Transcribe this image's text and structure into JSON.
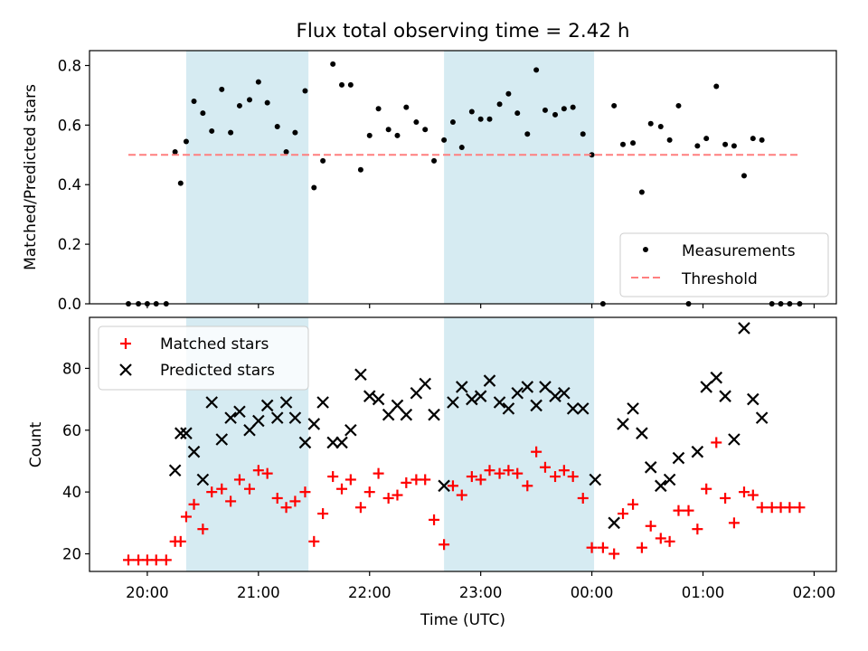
{
  "chart_data": [
    {
      "type": "scatter",
      "title": "Flux total observing time = 2.42 h",
      "xlabel": "",
      "ylabel": "Matched/Predicted stars",
      "x_units": "hours after 20:00 UTC",
      "xlim": [
        -0.52,
        6.2
      ],
      "ylim": [
        0.0,
        0.85
      ],
      "yticks": [
        "0.0",
        "0.2",
        "0.4",
        "0.6",
        "0.8"
      ],
      "shaded_intervals": [
        [
          0.35,
          1.45
        ],
        [
          2.67,
          4.02
        ]
      ],
      "legend": {
        "position": "lower-right"
      },
      "series": [
        {
          "name": "Measurements",
          "marker": "dot",
          "color": "#000000",
          "points": [
            [
              -0.17,
              0.0
            ],
            [
              -0.08,
              0.0
            ],
            [
              0.0,
              0.0
            ],
            [
              0.08,
              0.0
            ],
            [
              0.17,
              0.0
            ],
            [
              0.25,
              0.51
            ],
            [
              0.3,
              0.405
            ],
            [
              0.35,
              0.545
            ],
            [
              0.42,
              0.68
            ],
            [
              0.5,
              0.64
            ],
            [
              0.58,
              0.58
            ],
            [
              0.67,
              0.72
            ],
            [
              0.75,
              0.575
            ],
            [
              0.83,
              0.665
            ],
            [
              0.92,
              0.685
            ],
            [
              1.0,
              0.745
            ],
            [
              1.08,
              0.675
            ],
            [
              1.17,
              0.595
            ],
            [
              1.25,
              0.51
            ],
            [
              1.33,
              0.575
            ],
            [
              1.42,
              0.715
            ],
            [
              1.5,
              0.39
            ],
            [
              1.58,
              0.48
            ],
            [
              1.67,
              0.805
            ],
            [
              1.75,
              0.735
            ],
            [
              1.83,
              0.735
            ],
            [
              1.92,
              0.45
            ],
            [
              2.0,
              0.565
            ],
            [
              2.08,
              0.655
            ],
            [
              2.17,
              0.585
            ],
            [
              2.25,
              0.565
            ],
            [
              2.33,
              0.66
            ],
            [
              2.42,
              0.61
            ],
            [
              2.5,
              0.585
            ],
            [
              2.58,
              0.48
            ],
            [
              2.67,
              0.55
            ],
            [
              2.75,
              0.61
            ],
            [
              2.83,
              0.525
            ],
            [
              2.92,
              0.645
            ],
            [
              3.0,
              0.62
            ],
            [
              3.08,
              0.62
            ],
            [
              3.17,
              0.67
            ],
            [
              3.25,
              0.705
            ],
            [
              3.33,
              0.64
            ],
            [
              3.42,
              0.57
            ],
            [
              3.5,
              0.785
            ],
            [
              3.58,
              0.65
            ],
            [
              3.67,
              0.635
            ],
            [
              3.75,
              0.655
            ],
            [
              3.83,
              0.66
            ],
            [
              3.92,
              0.57
            ],
            [
              4.0,
              0.5
            ],
            [
              4.1,
              0.0
            ],
            [
              4.2,
              0.665
            ],
            [
              4.28,
              0.535
            ],
            [
              4.37,
              0.54
            ],
            [
              4.45,
              0.375
            ],
            [
              4.53,
              0.605
            ],
            [
              4.62,
              0.595
            ],
            [
              4.7,
              0.55
            ],
            [
              4.78,
              0.665
            ],
            [
              4.87,
              0.0
            ],
            [
              4.95,
              0.53
            ],
            [
              5.03,
              0.555
            ],
            [
              5.12,
              0.73
            ],
            [
              5.2,
              0.535
            ],
            [
              5.28,
              0.53
            ],
            [
              5.37,
              0.43
            ],
            [
              5.45,
              0.555
            ],
            [
              5.53,
              0.55
            ],
            [
              5.62,
              0.0
            ],
            [
              5.7,
              0.0
            ],
            [
              5.78,
              0.0
            ],
            [
              5.87,
              0.0
            ]
          ]
        },
        {
          "name": "Threshold",
          "line": "dashed",
          "color": "#ff7f7f",
          "points": [
            [
              -0.17,
              0.5
            ],
            [
              5.87,
              0.5
            ]
          ]
        }
      ]
    },
    {
      "type": "scatter",
      "title": "",
      "xlabel": "Time (UTC)",
      "ylabel": "Count",
      "x_units": "hours after 20:00 UTC",
      "xlim": [
        -0.52,
        6.2
      ],
      "ylim": [
        14.3,
        96.5
      ],
      "yticks": [
        "20",
        "40",
        "60",
        "80"
      ],
      "xticks": [
        "20:00",
        "21:00",
        "22:00",
        "23:00",
        "00:00",
        "01:00",
        "02:00"
      ],
      "shaded_intervals": [
        [
          0.35,
          1.45
        ],
        [
          2.67,
          4.02
        ]
      ],
      "legend": {
        "position": "upper-left"
      },
      "series": [
        {
          "name": "Matched stars",
          "marker": "plus",
          "color": "#ff0000",
          "points": [
            [
              -0.17,
              18
            ],
            [
              -0.08,
              18
            ],
            [
              0.0,
              18
            ],
            [
              0.08,
              18
            ],
            [
              0.17,
              18
            ],
            [
              0.25,
              24
            ],
            [
              0.3,
              24
            ],
            [
              0.35,
              32
            ],
            [
              0.42,
              36
            ],
            [
              0.5,
              28
            ],
            [
              0.58,
              40
            ],
            [
              0.67,
              41
            ],
            [
              0.75,
              37
            ],
            [
              0.83,
              44
            ],
            [
              0.92,
              41
            ],
            [
              1.0,
              47
            ],
            [
              1.08,
              46
            ],
            [
              1.17,
              38
            ],
            [
              1.25,
              35
            ],
            [
              1.33,
              37
            ],
            [
              1.42,
              40
            ],
            [
              1.5,
              24
            ],
            [
              1.58,
              33
            ],
            [
              1.67,
              45
            ],
            [
              1.75,
              41
            ],
            [
              1.83,
              44
            ],
            [
              1.92,
              35
            ],
            [
              2.0,
              40
            ],
            [
              2.08,
              46
            ],
            [
              2.17,
              38
            ],
            [
              2.25,
              39
            ],
            [
              2.33,
              43
            ],
            [
              2.42,
              44
            ],
            [
              2.5,
              44
            ],
            [
              2.58,
              31
            ],
            [
              2.67,
              23
            ],
            [
              2.75,
              42
            ],
            [
              2.83,
              39
            ],
            [
              2.92,
              45
            ],
            [
              3.0,
              44
            ],
            [
              3.08,
              47
            ],
            [
              3.17,
              46
            ],
            [
              3.25,
              47
            ],
            [
              3.33,
              46
            ],
            [
              3.42,
              42
            ],
            [
              3.5,
              53
            ],
            [
              3.58,
              48
            ],
            [
              3.67,
              45
            ],
            [
              3.75,
              47
            ],
            [
              3.83,
              45
            ],
            [
              3.92,
              38
            ],
            [
              4.0,
              22
            ],
            [
              4.1,
              22
            ],
            [
              4.2,
              20
            ],
            [
              4.28,
              33
            ],
            [
              4.37,
              36
            ],
            [
              4.45,
              22
            ],
            [
              4.53,
              29
            ],
            [
              4.62,
              25
            ],
            [
              4.7,
              24
            ],
            [
              4.78,
              34
            ],
            [
              4.87,
              34
            ],
            [
              4.95,
              28
            ],
            [
              5.03,
              41
            ],
            [
              5.12,
              56
            ],
            [
              5.2,
              38
            ],
            [
              5.28,
              30
            ],
            [
              5.37,
              40
            ],
            [
              5.45,
              39
            ],
            [
              5.53,
              35
            ],
            [
              5.62,
              35
            ],
            [
              5.7,
              35
            ],
            [
              5.78,
              35
            ],
            [
              5.87,
              35
            ]
          ]
        },
        {
          "name": "Predicted stars",
          "marker": "x",
          "color": "#000000",
          "points": [
            [
              0.25,
              47
            ],
            [
              0.3,
              59
            ],
            [
              0.35,
              59
            ],
            [
              0.42,
              53
            ],
            [
              0.5,
              44
            ],
            [
              0.58,
              69
            ],
            [
              0.67,
              57
            ],
            [
              0.75,
              64
            ],
            [
              0.83,
              66
            ],
            [
              0.92,
              60
            ],
            [
              1.0,
              63
            ],
            [
              1.08,
              68
            ],
            [
              1.17,
              64
            ],
            [
              1.25,
              69
            ],
            [
              1.33,
              64
            ],
            [
              1.42,
              56
            ],
            [
              1.5,
              62
            ],
            [
              1.58,
              69
            ],
            [
              1.67,
              56
            ],
            [
              1.75,
              56
            ],
            [
              1.83,
              60
            ],
            [
              1.92,
              78
            ],
            [
              2.0,
              71
            ],
            [
              2.08,
              70
            ],
            [
              2.17,
              65
            ],
            [
              2.25,
              68
            ],
            [
              2.33,
              65
            ],
            [
              2.42,
              72
            ],
            [
              2.5,
              75
            ],
            [
              2.58,
              65
            ],
            [
              2.67,
              42
            ],
            [
              2.75,
              69
            ],
            [
              2.83,
              74
            ],
            [
              2.92,
              70
            ],
            [
              3.0,
              71
            ],
            [
              3.08,
              76
            ],
            [
              3.17,
              69
            ],
            [
              3.25,
              67
            ],
            [
              3.33,
              72
            ],
            [
              3.42,
              74
            ],
            [
              3.5,
              68
            ],
            [
              3.58,
              74
            ],
            [
              3.67,
              71
            ],
            [
              3.75,
              72
            ],
            [
              3.83,
              67
            ],
            [
              3.92,
              67
            ],
            [
              4.03,
              44
            ],
            [
              4.2,
              30
            ],
            [
              4.28,
              62
            ],
            [
              4.37,
              67
            ],
            [
              4.45,
              59
            ],
            [
              4.53,
              48
            ],
            [
              4.62,
              42
            ],
            [
              4.7,
              44
            ],
            [
              4.78,
              51
            ],
            [
              4.95,
              53
            ],
            [
              5.03,
              74
            ],
            [
              5.12,
              77
            ],
            [
              5.2,
              71
            ],
            [
              5.28,
              57
            ],
            [
              5.37,
              93
            ],
            [
              5.45,
              70
            ],
            [
              5.53,
              64
            ]
          ]
        }
      ]
    }
  ]
}
